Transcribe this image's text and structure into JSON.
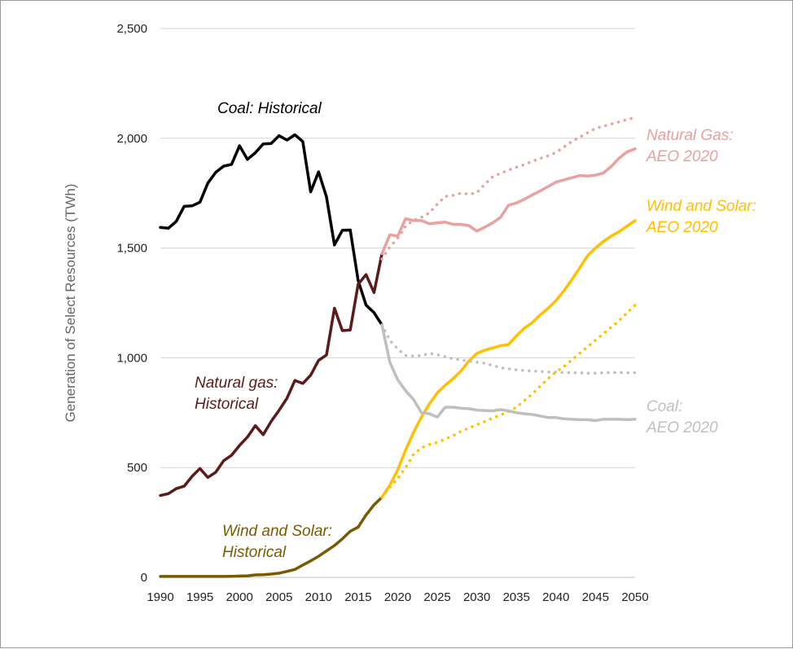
{
  "chart_data": {
    "type": "line",
    "ylabel": "Generation of Select Resources (TWh)",
    "xlim": [
      1990,
      2050
    ],
    "ylim": [
      0,
      2500
    ],
    "x_ticks": [
      1990,
      1995,
      2000,
      2005,
      2010,
      2015,
      2020,
      2025,
      2030,
      2035,
      2040,
      2045,
      2050
    ],
    "y_ticks": [
      0,
      500,
      1000,
      1500,
      2000,
      2500
    ],
    "y_tick_labels": [
      "0",
      "500",
      "1,000",
      "1,500",
      "2,000",
      "2,500"
    ],
    "grid": "horizontal",
    "legend": "none",
    "series": [
      {
        "key": "coal_hist",
        "color": "#000000",
        "style": "solid",
        "x": [
          1990,
          1991,
          1992,
          1993,
          1994,
          1995,
          1996,
          1997,
          1998,
          1999,
          2000,
          2001,
          2002,
          2003,
          2004,
          2005,
          2006,
          2007,
          2008,
          2009,
          2010,
          2011,
          2012,
          2013,
          2014,
          2015,
          2016,
          2017,
          2018
        ],
        "y": [
          1594,
          1590,
          1621,
          1690,
          1692,
          1709,
          1796,
          1845,
          1873,
          1881,
          1966,
          1904,
          1934,
          1974,
          1976,
          2012,
          1992,
          2016,
          1985,
          1756,
          1847,
          1733,
          1514,
          1581,
          1582,
          1352,
          1240,
          1206,
          1150
        ]
      },
      {
        "key": "gas_hist",
        "color": "#5c1a1a",
        "style": "solid",
        "x": [
          1990,
          1991,
          1992,
          1993,
          1994,
          1995,
          1996,
          1997,
          1998,
          1999,
          2000,
          2001,
          2002,
          2003,
          2004,
          2005,
          2006,
          2007,
          2008,
          2009,
          2010,
          2011,
          2012,
          2013,
          2014,
          2015,
          2016,
          2017,
          2018
        ],
        "y": [
          373,
          381,
          404,
          415,
          460,
          496,
          455,
          479,
          531,
          556,
          601,
          639,
          691,
          650,
          710,
          761,
          816,
          897,
          883,
          921,
          988,
          1013,
          1226,
          1124,
          1127,
          1335,
          1379,
          1297,
          1474
        ]
      },
      {
        "key": "ws_hist",
        "color": "#7a5a00",
        "style": "solid",
        "x": [
          1990,
          1991,
          1992,
          1993,
          1994,
          1995,
          1996,
          1997,
          1998,
          1999,
          2000,
          2001,
          2002,
          2003,
          2004,
          2005,
          2006,
          2007,
          2008,
          2009,
          2010,
          2011,
          2012,
          2013,
          2014,
          2015,
          2016,
          2017,
          2018
        ],
        "y": [
          4,
          4,
          4,
          4,
          4,
          4,
          4,
          4,
          4,
          5,
          6,
          7,
          11,
          12,
          15,
          19,
          27,
          36,
          56,
          75,
          96,
          120,
          145,
          175,
          210,
          229,
          284,
          330,
          365
        ]
      },
      {
        "key": "gas_aeo",
        "color": "#e8a0a0",
        "style": "solid",
        "x": [
          2018,
          2019,
          2020,
          2021,
          2022,
          2023,
          2024,
          2025,
          2026,
          2027,
          2028,
          2029,
          2030,
          2031,
          2032,
          2033,
          2034,
          2035,
          2036,
          2037,
          2038,
          2039,
          2040,
          2041,
          2042,
          2043,
          2044,
          2045,
          2046,
          2047,
          2048,
          2049,
          2050
        ],
        "y": [
          1474,
          1560,
          1555,
          1634,
          1625,
          1625,
          1610,
          1615,
          1618,
          1608,
          1608,
          1602,
          1577,
          1595,
          1615,
          1640,
          1695,
          1705,
          1722,
          1742,
          1760,
          1780,
          1800,
          1810,
          1820,
          1830,
          1828,
          1832,
          1842,
          1872,
          1910,
          1938,
          1952
        ]
      },
      {
        "key": "gas_aeo_alt",
        "color": "#e8a0a0",
        "style": "dotted",
        "x": [
          2018,
          2019,
          2020,
          2021,
          2022,
          2023,
          2024,
          2025,
          2026,
          2027,
          2028,
          2029,
          2030,
          2031,
          2032,
          2033,
          2034,
          2035,
          2036,
          2037,
          2038,
          2039,
          2040,
          2041,
          2042,
          2043,
          2044,
          2045,
          2046,
          2047,
          2048,
          2049,
          2050
        ],
        "y": [
          1450,
          1505,
          1545,
          1600,
          1627,
          1640,
          1660,
          1700,
          1735,
          1740,
          1750,
          1745,
          1752,
          1790,
          1825,
          1840,
          1855,
          1868,
          1880,
          1895,
          1908,
          1920,
          1935,
          1960,
          1985,
          2005,
          2025,
          2045,
          2055,
          2065,
          2075,
          2085,
          2095
        ]
      },
      {
        "key": "ws_aeo",
        "color": "#ffc000",
        "style": "solid",
        "x": [
          2018,
          2019,
          2020,
          2021,
          2022,
          2023,
          2024,
          2025,
          2026,
          2027,
          2028,
          2029,
          2030,
          2031,
          2032,
          2033,
          2034,
          2035,
          2036,
          2037,
          2038,
          2039,
          2040,
          2041,
          2042,
          2043,
          2044,
          2045,
          2046,
          2047,
          2048,
          2049,
          2050
        ],
        "y": [
          365,
          420,
          490,
          580,
          660,
          730,
          790,
          840,
          875,
          905,
          940,
          985,
          1020,
          1035,
          1045,
          1055,
          1060,
          1100,
          1135,
          1160,
          1195,
          1225,
          1260,
          1305,
          1355,
          1410,
          1465,
          1500,
          1530,
          1555,
          1575,
          1600,
          1625
        ]
      },
      {
        "key": "ws_aeo_alt",
        "color": "#ffc000",
        "style": "dotted",
        "x": [
          2018,
          2019,
          2020,
          2021,
          2022,
          2023,
          2024,
          2025,
          2026,
          2027,
          2028,
          2029,
          2030,
          2031,
          2032,
          2033,
          2034,
          2035,
          2036,
          2037,
          2038,
          2039,
          2040,
          2041,
          2042,
          2043,
          2044,
          2045,
          2046,
          2047,
          2048,
          2049,
          2050
        ],
        "y": [
          365,
          410,
          450,
          500,
          560,
          590,
          605,
          615,
          630,
          645,
          665,
          680,
          695,
          710,
          725,
          740,
          755,
          775,
          805,
          835,
          870,
          905,
          935,
          960,
          990,
          1020,
          1050,
          1080,
          1110,
          1140,
          1170,
          1205,
          1240
        ]
      },
      {
        "key": "coal_aeo",
        "color": "#bfbfbf",
        "style": "solid",
        "x": [
          2018,
          2019,
          2020,
          2021,
          2022,
          2023,
          2024,
          2025,
          2026,
          2027,
          2028,
          2029,
          2030,
          2031,
          2032,
          2033,
          2034,
          2035,
          2036,
          2037,
          2038,
          2039,
          2040,
          2041,
          2042,
          2043,
          2044,
          2045,
          2046,
          2047,
          2048,
          2049,
          2050
        ],
        "y": [
          1150,
          980,
          900,
          850,
          810,
          750,
          745,
          730,
          775,
          775,
          770,
          768,
          762,
          760,
          758,
          764,
          758,
          750,
          745,
          742,
          735,
          728,
          728,
          722,
          720,
          718,
          718,
          714,
          720,
          720,
          720,
          718,
          720
        ]
      },
      {
        "key": "coal_aeo_alt",
        "color": "#bfbfbf",
        "style": "dotted",
        "x": [
          2018,
          2019,
          2020,
          2021,
          2022,
          2023,
          2024,
          2025,
          2026,
          2027,
          2028,
          2029,
          2030,
          2031,
          2032,
          2033,
          2034,
          2035,
          2036,
          2037,
          2038,
          2039,
          2040,
          2041,
          2042,
          2043,
          2044,
          2045,
          2046,
          2047,
          2048,
          2049,
          2050
        ],
        "y": [
          1150,
          1080,
          1040,
          1010,
          1008,
          1010,
          1020,
          1015,
          1005,
          995,
          990,
          985,
          980,
          975,
          965,
          955,
          950,
          945,
          942,
          940,
          938,
          935,
          935,
          933,
          932,
          932,
          930,
          930,
          932,
          933,
          933,
          932,
          932
        ]
      }
    ],
    "annotations": [
      {
        "key": "coal_hist",
        "lines": [
          "Coal: Historical"
        ],
        "color": "#000000"
      },
      {
        "key": "gas_hist",
        "lines": [
          "Natural gas:",
          "Historical"
        ],
        "color": "#5c1a1a"
      },
      {
        "key": "ws_hist",
        "lines": [
          "Wind and Solar:",
          "Historical"
        ],
        "color": "#7a5a00"
      },
      {
        "key": "gas_aeo",
        "lines": [
          "Natural Gas:",
          "AEO 2020"
        ],
        "color": "#e8a0a0"
      },
      {
        "key": "ws_aeo",
        "lines": [
          "Wind and Solar:",
          "AEO 2020"
        ],
        "color": "#ffc000"
      },
      {
        "key": "coal_aeo",
        "lines": [
          "Coal:",
          "AEO 2020"
        ],
        "color": "#bfbfbf"
      }
    ]
  }
}
